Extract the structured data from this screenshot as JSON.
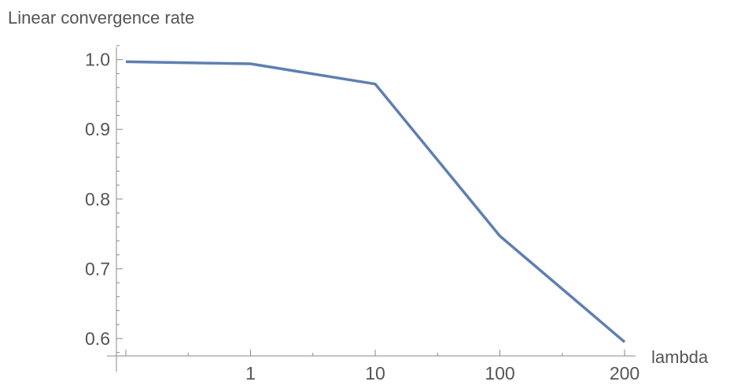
{
  "chart_data": {
    "type": "line",
    "ylabel": "Linear convergence rate",
    "xlabel": "lambda",
    "x_scale": "category",
    "categories": [
      "",
      "1",
      "10",
      "100",
      "200"
    ],
    "x_tick_labels": [
      "1",
      "10",
      "100",
      "200"
    ],
    "y_ticks": [
      0.6,
      0.7,
      0.8,
      0.9,
      1.0
    ],
    "y_tick_labels": [
      "0.6",
      "0.7",
      "0.8",
      "0.9",
      "1.0"
    ],
    "ylim": [
      0.575,
      1.02
    ],
    "grid": false,
    "series": [
      {
        "color": "#5f7fb2",
        "values": [
          0.997,
          0.994,
          0.965,
          0.747,
          0.595
        ]
      }
    ]
  }
}
